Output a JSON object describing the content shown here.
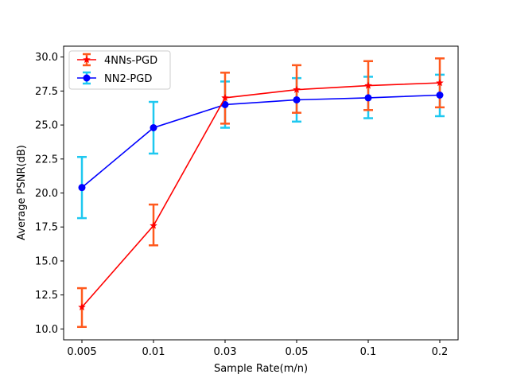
{
  "chart_data": {
    "type": "line",
    "title": "",
    "xlabel": "Sample Rate(m/n)",
    "ylabel": "Average PSNR(dB)",
    "categories": [
      "0.005",
      "0.01",
      "0.03",
      "0.05",
      "0.1",
      "0.2"
    ],
    "ylim": [
      9.2,
      30.8
    ],
    "yticks": [
      "10.0",
      "12.5",
      "15.0",
      "17.5",
      "20.0",
      "22.5",
      "25.0",
      "27.5",
      "30.0"
    ],
    "ytick_values": [
      10.0,
      12.5,
      15.0,
      17.5,
      20.0,
      22.5,
      25.0,
      27.5,
      30.0
    ],
    "legend_position": "upper-left",
    "series": [
      {
        "name": "4NNs-PGD",
        "line_color": "#ff0000",
        "error_color": "#ff5a1e",
        "marker": "star",
        "values": [
          11.6,
          17.6,
          27.0,
          27.6,
          27.9,
          28.1
        ],
        "err_low": [
          10.15,
          16.15,
          25.1,
          25.9,
          26.1,
          26.3
        ],
        "err_high": [
          13.0,
          19.15,
          28.85,
          29.4,
          29.7,
          29.9
        ]
      },
      {
        "name": "NN2-PGD",
        "line_color": "#0000ff",
        "error_color": "#1ec8f0",
        "marker": "circle",
        "values": [
          20.4,
          24.8,
          26.5,
          26.85,
          27.0,
          27.2
        ],
        "err_low": [
          18.15,
          22.9,
          24.8,
          25.25,
          25.5,
          25.65
        ],
        "err_high": [
          22.65,
          26.7,
          28.2,
          28.45,
          28.55,
          28.7
        ]
      }
    ]
  }
}
